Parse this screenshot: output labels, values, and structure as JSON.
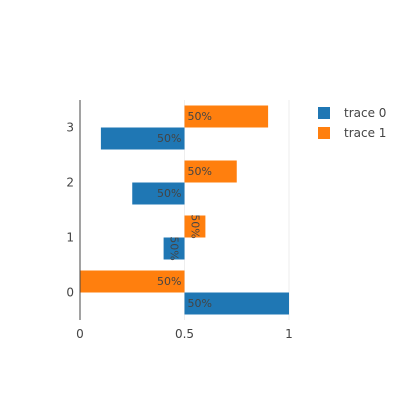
{
  "chart_data": {
    "type": "bar",
    "orientation": "horizontal",
    "barmode": "group",
    "categories": [
      "0",
      "1",
      "2",
      "3"
    ],
    "base": 0.5,
    "series": [
      {
        "name": "trace 0",
        "color": "#1f77b4",
        "values": [
          1.0,
          0.4,
          0.25,
          0.1
        ],
        "labels": [
          "50%",
          "50%",
          "50%",
          "50%"
        ]
      },
      {
        "name": "trace 1",
        "color": "#ff7f0e",
        "values": [
          0.0,
          0.6,
          0.75,
          0.9
        ],
        "labels": [
          "50%",
          "50%",
          "50%",
          "50%"
        ]
      }
    ],
    "x_ticks": [
      "0",
      "0.5",
      "1"
    ],
    "x_tick_values": [
      0,
      0.5,
      1
    ],
    "xlim": [
      0,
      1
    ],
    "grid": true,
    "legend_position": "top-right",
    "title": "",
    "xlabel": "",
    "ylabel": ""
  }
}
